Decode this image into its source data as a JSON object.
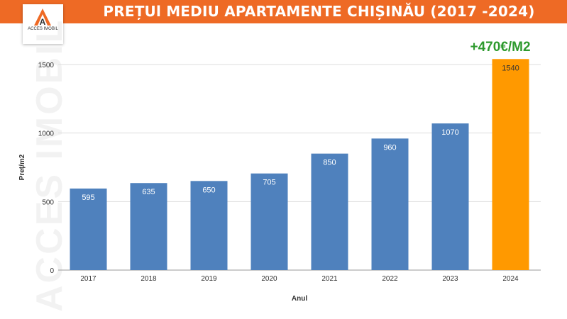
{
  "header": {
    "title": "PREȚUl MEDIU APARTAMENTE CHIȘINĂU (2017 -2024)"
  },
  "logo": {
    "text": "ACCES IMOBIL",
    "color": "#ee6a25"
  },
  "watermark": "ACCES IMOBIL",
  "annotation": "+470€/M2",
  "colors": {
    "header": "#ee6a25",
    "bar": "#4f81bd",
    "highlight": "#ff9900",
    "annotation": "#2e9a2e"
  },
  "chart_data": {
    "type": "bar",
    "title": "PREȚUl MEDIU APARTAMENTE CHIȘINĂU (2017 -2024)",
    "xlabel": "Anul",
    "ylabel": "Preț/m2",
    "categories": [
      "2017",
      "2018",
      "2019",
      "2020",
      "2021",
      "2022",
      "2023",
      "2024"
    ],
    "values": [
      595,
      635,
      650,
      705,
      850,
      960,
      1070,
      1540
    ],
    "highlight_category": "2024",
    "yticks": [
      0,
      500,
      1000,
      1500
    ],
    "ylim": [
      0,
      1500
    ],
    "grid": true,
    "legend": "none"
  }
}
